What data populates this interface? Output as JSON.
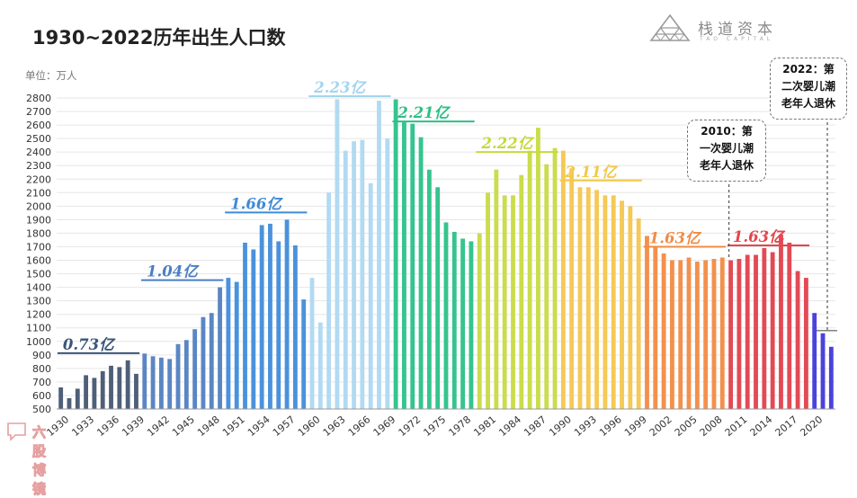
{
  "header": {
    "title": "1930~2022历年出生人口数",
    "unit": "单位：万人"
  },
  "brand": {
    "name": "栈道资本",
    "sub": "TAO CAPITAL",
    "logo_icon": "triangle-lattice-logo-icon"
  },
  "watermark": {
    "text": "六股博镜",
    "icon": "watermark-bubble-icon"
  },
  "callouts": [
    {
      "id": "2010",
      "lines": [
        "2010：第",
        "一次婴儿潮",
        "老年人退休"
      ]
    },
    {
      "id": "2022",
      "lines": [
        "2022：第",
        "二次婴儿潮",
        "老年人退休"
      ]
    }
  ],
  "chart_data": {
    "type": "bar",
    "title": "1930~2022历年出生人口数",
    "ylabel": "单位：万人",
    "xlabel": "",
    "ylim": [
      500,
      2800
    ],
    "yticks": [
      500,
      600,
      700,
      800,
      900,
      1000,
      1100,
      1200,
      1300,
      1400,
      1500,
      1600,
      1700,
      1800,
      1900,
      2000,
      2100,
      2200,
      2300,
      2400,
      2500,
      2600,
      2700,
      2800
    ],
    "x_tick_labels": [
      "1930",
      "1933",
      "1936",
      "1939",
      "1942",
      "1945",
      "1948",
      "1951",
      "1954",
      "1957",
      "1960",
      "1963",
      "1966",
      "1969",
      "1972",
      "1975",
      "1978",
      "1981",
      "1984",
      "1987",
      "1990",
      "1993",
      "1996",
      "1999",
      "2002",
      "2005",
      "2008",
      "2011",
      "2014",
      "2017",
      "2020"
    ],
    "grid": true,
    "years": [
      1930,
      1931,
      1932,
      1933,
      1934,
      1935,
      1936,
      1937,
      1938,
      1939,
      1940,
      1941,
      1942,
      1943,
      1944,
      1945,
      1946,
      1947,
      1948,
      1949,
      1950,
      1951,
      1952,
      1953,
      1954,
      1955,
      1956,
      1957,
      1958,
      1959,
      1960,
      1961,
      1962,
      1963,
      1964,
      1965,
      1966,
      1967,
      1968,
      1969,
      1970,
      1971,
      1972,
      1973,
      1974,
      1975,
      1976,
      1977,
      1978,
      1979,
      1980,
      1981,
      1982,
      1983,
      1984,
      1985,
      1986,
      1987,
      1988,
      1989,
      1990,
      1991,
      1992,
      1993,
      1994,
      1995,
      1996,
      1997,
      1998,
      1999,
      2000,
      2001,
      2002,
      2003,
      2004,
      2005,
      2006,
      2007,
      2008,
      2009,
      2010,
      2011,
      2012,
      2013,
      2014,
      2015,
      2016,
      2017,
      2018,
      2019,
      2020,
      2021,
      2022
    ],
    "values": [
      660,
      580,
      650,
      750,
      730,
      780,
      820,
      810,
      860,
      760,
      910,
      890,
      880,
      870,
      980,
      1010,
      1090,
      1180,
      1210,
      1400,
      1470,
      1440,
      1730,
      1680,
      1860,
      1870,
      1740,
      1900,
      1710,
      1310,
      1470,
      1140,
      2100,
      2790,
      2410,
      2480,
      2490,
      2170,
      2780,
      2500,
      2790,
      2620,
      2610,
      2510,
      2270,
      2140,
      1880,
      1810,
      1760,
      1740,
      1800,
      2100,
      2270,
      2080,
      2080,
      2230,
      2410,
      2580,
      2310,
      2430,
      2410,
      2280,
      2140,
      2140,
      2120,
      2080,
      2080,
      2040,
      2000,
      1910,
      1780,
      1700,
      1650,
      1600,
      1600,
      1620,
      1590,
      1600,
      1610,
      1620,
      1600,
      1610,
      1640,
      1640,
      1690,
      1660,
      1790,
      1730,
      1520,
      1470,
      1210,
      1060,
      960
    ],
    "eras": [
      {
        "label": "0.73亿",
        "start": 1930,
        "end": 1939,
        "color": "#3a5578"
      },
      {
        "label": "1.04亿",
        "start": 1940,
        "end": 1949,
        "color": "#4a7fc4"
      },
      {
        "label": "1.66亿",
        "start": 1950,
        "end": 1959,
        "color": "#3f8ad8"
      },
      {
        "label": "2.23亿",
        "start": 1960,
        "end": 1969,
        "color": "#a4d4ef"
      },
      {
        "label": "2.21亿",
        "start": 1970,
        "end": 1979,
        "color": "#2ebf86"
      },
      {
        "label": "2.22亿",
        "start": 1980,
        "end": 1989,
        "color": "#c6d93c"
      },
      {
        "label": "2.11亿",
        "start": 1990,
        "end": 1999,
        "color": "#f2c94a"
      },
      {
        "label": "1.63亿",
        "start": 2000,
        "end": 2009,
        "color": "#f18c44"
      },
      {
        "label": "1.63亿",
        "start": 2010,
        "end": 2019,
        "color": "#e3474e"
      },
      {
        "label": "",
        "start": 2020,
        "end": 2022,
        "color": "#4a3fd8"
      }
    ],
    "bar_colors": [
      "#4f5f78",
      "#4f5f78",
      "#4f5f78",
      "#4f5f78",
      "#4f5f78",
      "#4f5f78",
      "#4f5f78",
      "#4f5f78",
      "#4f5f78",
      "#4f5f78",
      "#5b86c4",
      "#5b86c4",
      "#5b86c4",
      "#5b86c4",
      "#5b86c4",
      "#5b86c4",
      "#5b86c4",
      "#5b86c4",
      "#5b86c4",
      "#5b86c4",
      "#4a92dc",
      "#4a92dc",
      "#4a92dc",
      "#4a92dc",
      "#4a92dc",
      "#4a92dc",
      "#4a92dc",
      "#4a92dc",
      "#4a92dc",
      "#4a92dc",
      "#b2daf2",
      "#b2daf2",
      "#b2daf2",
      "#b2daf2",
      "#b2daf2",
      "#b2daf2",
      "#b2daf2",
      "#b2daf2",
      "#b2daf2",
      "#b2daf2",
      "#36c48e",
      "#36c48e",
      "#36c48e",
      "#36c48e",
      "#36c48e",
      "#36c48e",
      "#36c48e",
      "#36c48e",
      "#36c48e",
      "#36c48e",
      "#cbdc4c",
      "#cbdc4c",
      "#cbdc4c",
      "#cbdc4c",
      "#cbdc4c",
      "#cbdc4c",
      "#cbdc4c",
      "#cbdc4c",
      "#cbdc4c",
      "#cbdc4c",
      "#f5c957",
      "#f5c957",
      "#f5c957",
      "#f5c957",
      "#f5c957",
      "#f5c957",
      "#f5c957",
      "#f5c957",
      "#f5c957",
      "#f5c957",
      "#f3904c",
      "#f3904c",
      "#f3904c",
      "#f3904c",
      "#f3904c",
      "#f3904c",
      "#f3904c",
      "#f3904c",
      "#f3904c",
      "#f3904c",
      "#e34a55",
      "#e34a55",
      "#e34a55",
      "#e34a55",
      "#e34a55",
      "#e34a55",
      "#e34a55",
      "#e34a55",
      "#e34a55",
      "#e34a55",
      "#4b42dc",
      "#4b42dc",
      "#4b42dc"
    ]
  }
}
